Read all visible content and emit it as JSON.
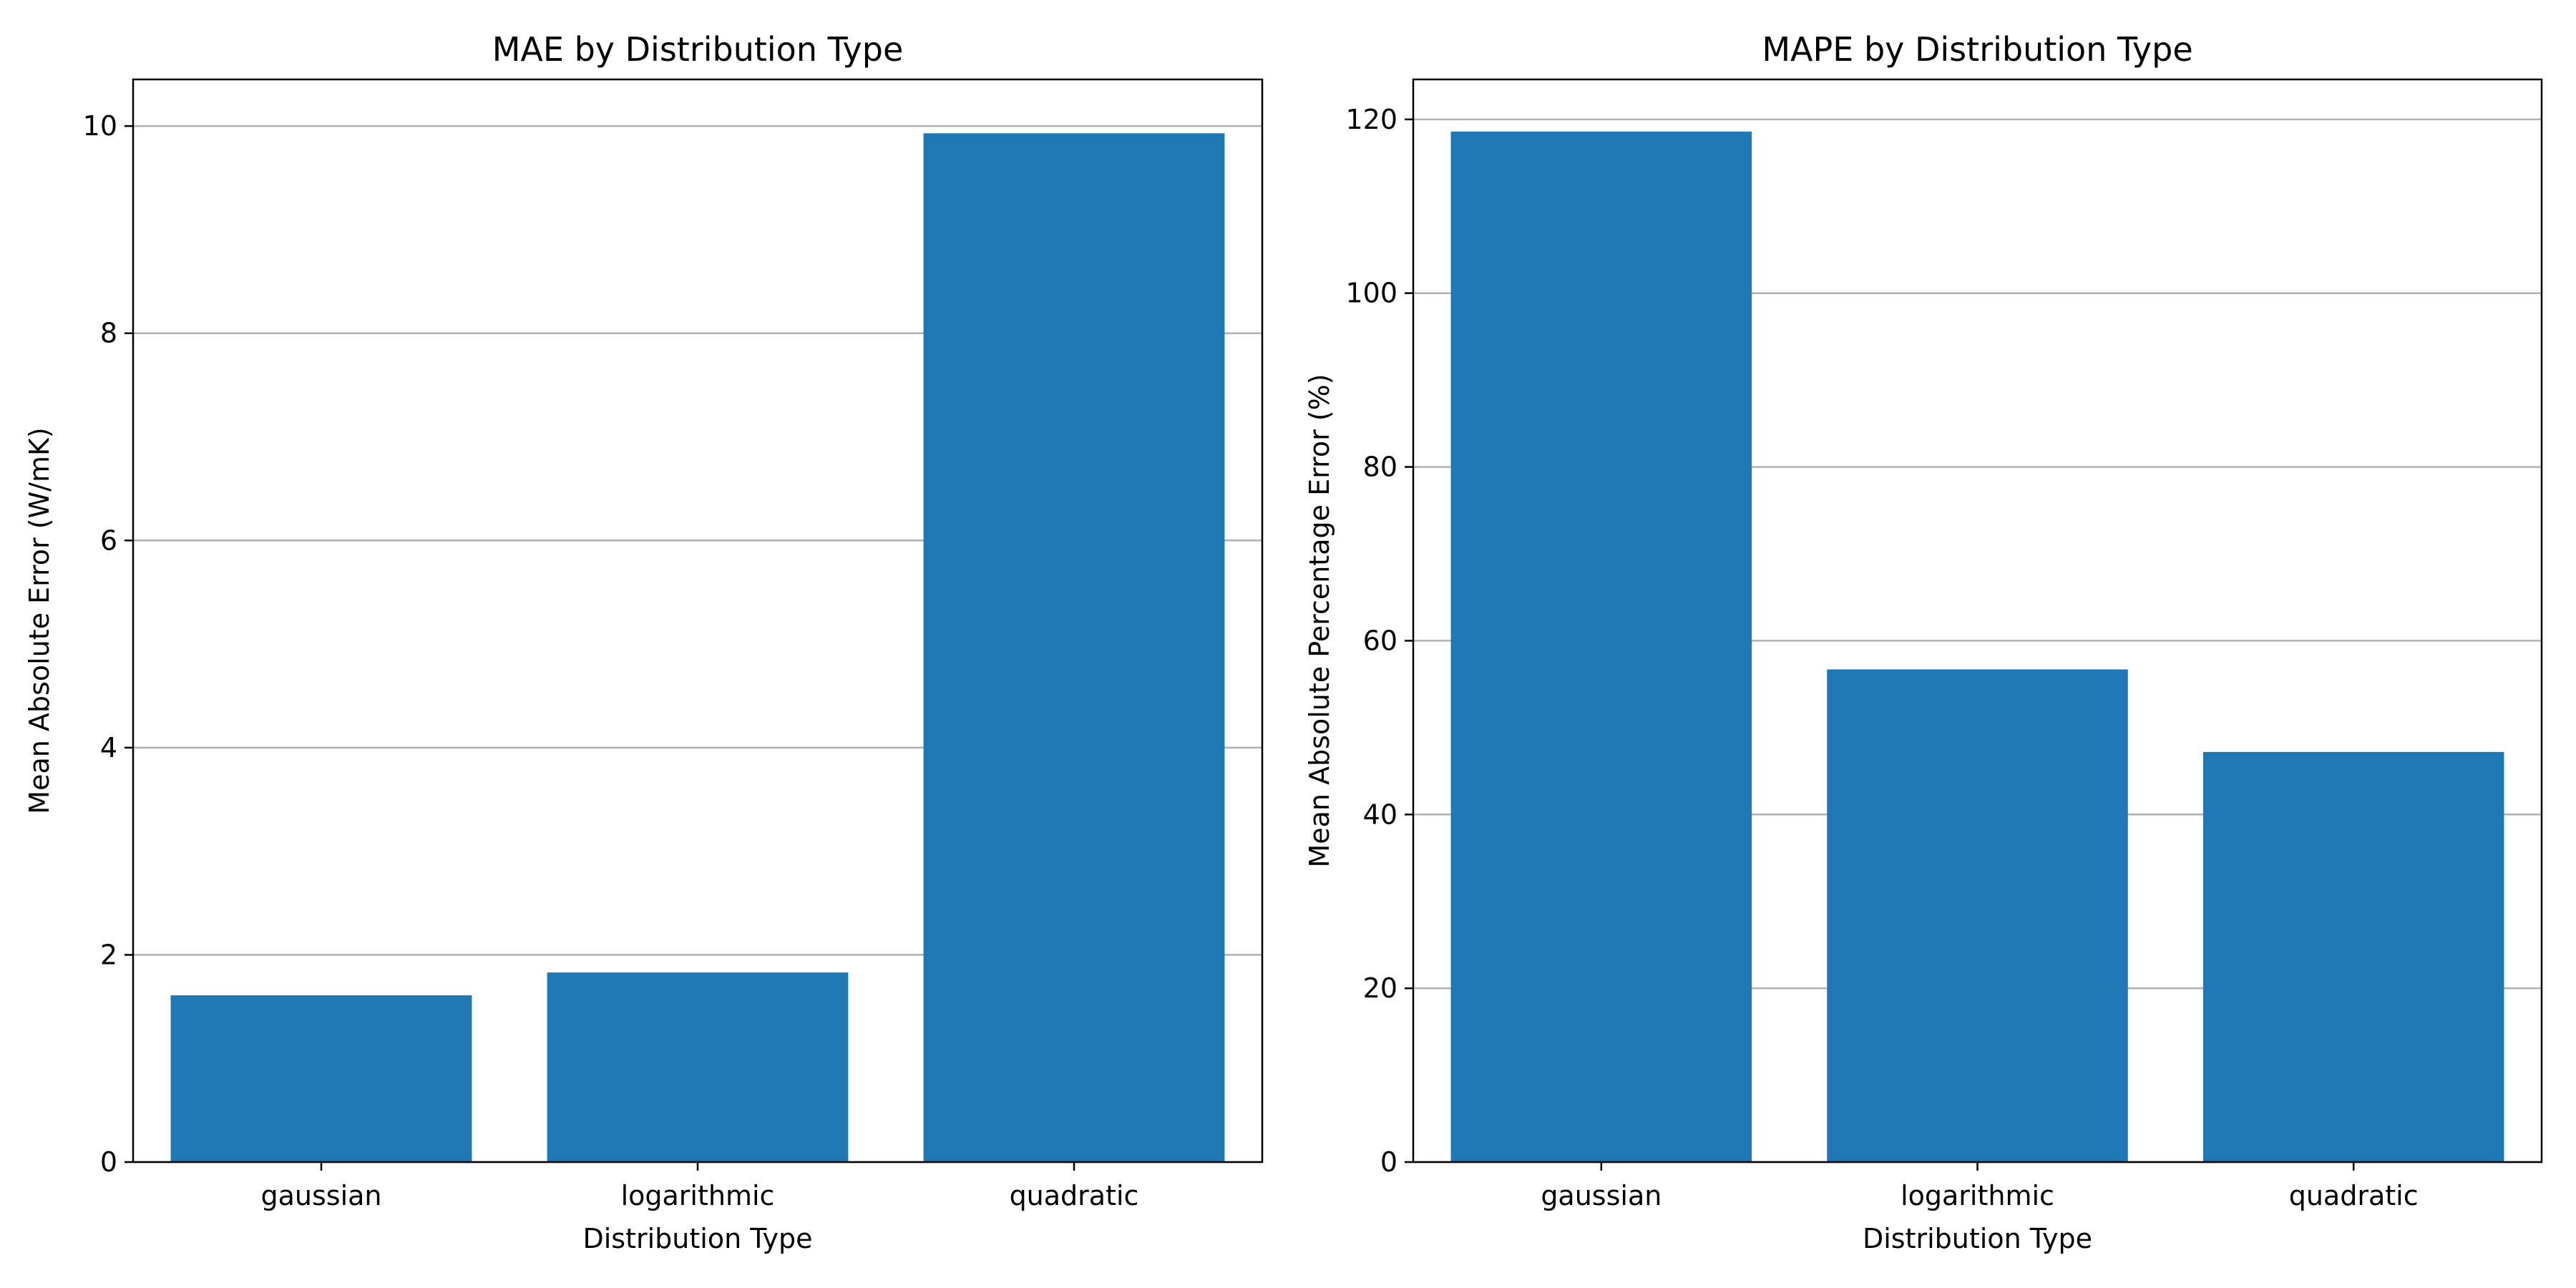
{
  "chart_data": [
    {
      "type": "bar",
      "title": "MAE by Distribution Type",
      "xlabel": "Distribution Type",
      "ylabel": "Mean Absolute Error (W/mK)",
      "categories": [
        "gaussian",
        "logarithmic",
        "quadratic"
      ],
      "values": [
        1.61,
        1.83,
        9.93
      ],
      "ylim": [
        0,
        10.45
      ],
      "yticks": [
        0,
        2,
        4,
        6,
        8,
        10
      ],
      "grid": "y",
      "legend": "none",
      "bar_color": "#1f77b4"
    },
    {
      "type": "bar",
      "title": "MAPE by Distribution Type",
      "xlabel": "Distribution Type",
      "ylabel": "Mean Absolute Percentage Error (%)",
      "categories": [
        "gaussian",
        "logarithmic",
        "quadratic"
      ],
      "values": [
        118.6,
        56.7,
        47.2
      ],
      "ylim": [
        0,
        124.6
      ],
      "yticks": [
        0,
        20,
        40,
        60,
        80,
        100,
        120
      ],
      "grid": "y",
      "legend": "none",
      "bar_color": "#1f77b4"
    }
  ]
}
